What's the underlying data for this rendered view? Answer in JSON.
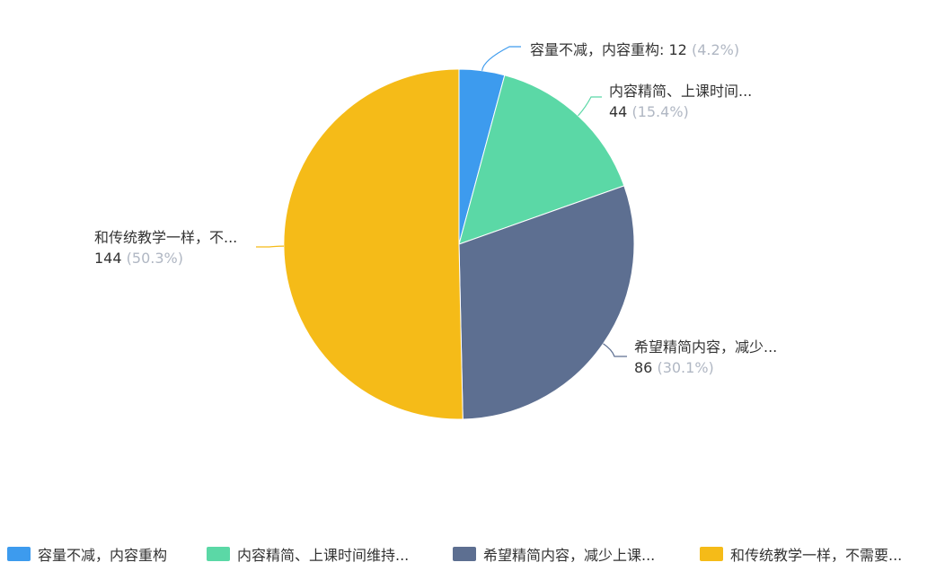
{
  "chart_data": {
    "type": "pie",
    "slices": [
      {
        "name": "容量不减，内容重构",
        "value": 12,
        "percent": "4.2%",
        "color": "#3d9bee",
        "label_name": "容量不减，内容重构",
        "label_value": "12",
        "label_pct": "(4.2%)",
        "legend_label": "容量不减，内容重构"
      },
      {
        "name": "内容精简、上课时间维持",
        "value": 44,
        "percent": "15.4%",
        "color": "#5bd8a6",
        "label_name": "内容精简、上课时间...",
        "label_value": "44",
        "label_pct": "(15.4%)",
        "legend_label": "内容精简、上课时间维持..."
      },
      {
        "name": "希望精简内容，减少上课",
        "value": 86,
        "percent": "30.1%",
        "color": "#5d6f91",
        "label_name": "希望精简内容，减少...",
        "label_value": "86",
        "label_pct": "(30.1%)",
        "legend_label": "希望精简内容，减少上课..."
      },
      {
        "name": "和传统教学一样，不需要",
        "value": 144,
        "percent": "50.3%",
        "color": "#f5bb18",
        "label_name": "和传统教学一样，不...",
        "label_value": "144",
        "label_pct": "(50.3%)",
        "legend_label": "和传统教学一样，不需要..."
      }
    ],
    "legend_position": "bottom"
  }
}
